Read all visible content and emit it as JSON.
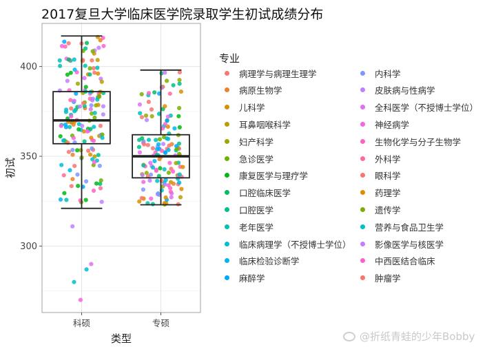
{
  "chart_data": {
    "type": "boxplot",
    "title": "2017复旦大学临床医学院录取学生初试成绩分布",
    "xlabel": "类型",
    "ylabel": "初试",
    "categories": [
      "科硕",
      "专硕"
    ],
    "ylim": [
      263,
      424
    ],
    "yticks": [
      300,
      350,
      400
    ],
    "grid": true,
    "boxes": [
      {
        "category": "科硕",
        "whisker_low": 321,
        "q1": 357,
        "median": 370,
        "q3": 386,
        "whisker_high": 417
      },
      {
        "category": "专硕",
        "whisker_low": 323,
        "q1": 338,
        "median": 350,
        "q3": 362,
        "whisker_high": 398
      }
    ],
    "outliers": [
      {
        "category": "科硕",
        "y": 311
      },
      {
        "category": "科硕",
        "y": 290
      },
      {
        "category": "科硕",
        "y": 287
      },
      {
        "category": "科硕",
        "y": 280
      },
      {
        "category": "科硕",
        "y": 270
      }
    ],
    "legend": {
      "title": "专业",
      "placement": "right",
      "items": [
        {
          "name": "病理学与病理生理学",
          "color": "#F8766D"
        },
        {
          "name": "病原生物学",
          "color": "#E9842C"
        },
        {
          "name": "儿科学",
          "color": "#D69100"
        },
        {
          "name": "耳鼻咽喉科学",
          "color": "#BC9D00"
        },
        {
          "name": "妇产科学",
          "color": "#9CA700"
        },
        {
          "name": "急诊医学",
          "color": "#6FB000"
        },
        {
          "name": "康复医学与理疗学",
          "color": "#00B813"
        },
        {
          "name": "口腔临床医学",
          "color": "#00BD61"
        },
        {
          "name": "口腔医学",
          "color": "#00C08E"
        },
        {
          "name": "老年医学",
          "color": "#00C0B4"
        },
        {
          "name": "临床病理学（不授博士学位）",
          "color": "#00BDD4"
        },
        {
          "name": "临床检验诊断学",
          "color": "#00B5EE"
        },
        {
          "name": "麻醉学",
          "color": "#00A7FF"
        },
        {
          "name": "内科学",
          "color": "#7F96FF"
        },
        {
          "name": "皮肤病与性病学",
          "color": "#BC81FF"
        },
        {
          "name": "全科医学（不授博士学位）",
          "color": "#E26EF7"
        },
        {
          "name": "神经病学",
          "color": "#F863DF"
        },
        {
          "name": "生物化学与分子生物学",
          "color": "#FF62BF"
        },
        {
          "name": "外科学",
          "color": "#FF6A9A"
        },
        {
          "name": "眼科学",
          "color": "#F8766D"
        },
        {
          "name": "药理学",
          "color": "#E08B00"
        },
        {
          "name": "遗传学",
          "color": "#7CAE00"
        },
        {
          "name": "营养与食品卫生学",
          "color": "#00BFC4"
        },
        {
          "name": "影像医学与核医学",
          "color": "#C77CFF"
        },
        {
          "name": "中西医结合临床",
          "color": "#FF61CC"
        },
        {
          "name": "肿瘤学",
          "color": "#F8766D"
        }
      ]
    }
  },
  "watermark": "@折纸青蛙的少年Bobby"
}
